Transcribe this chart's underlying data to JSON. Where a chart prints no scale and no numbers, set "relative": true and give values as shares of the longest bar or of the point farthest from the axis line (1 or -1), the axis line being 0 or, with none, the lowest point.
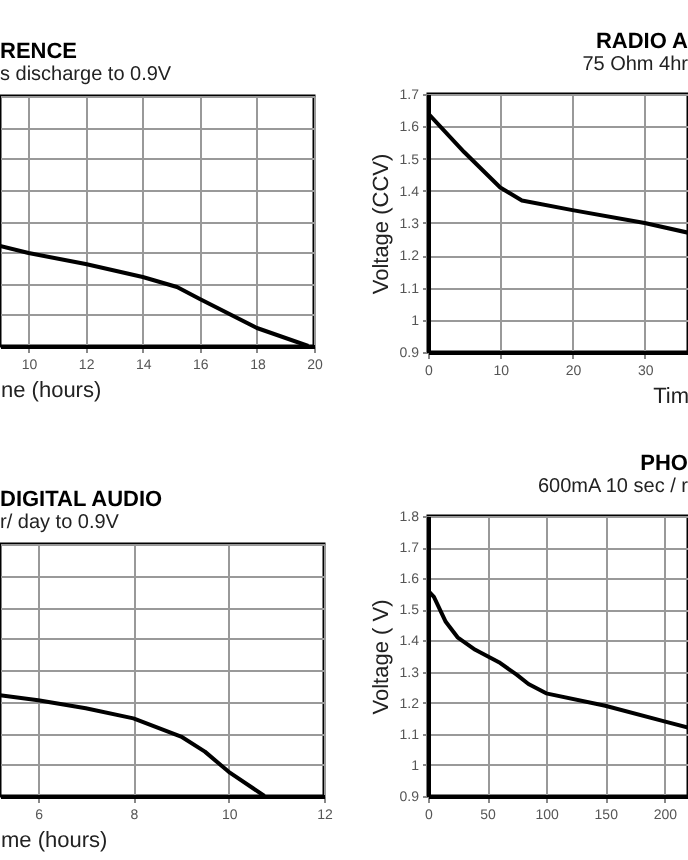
{
  "chart_data": [
    {
      "type": "line",
      "title": "RENCE",
      "subtitle": "s discharge to 0.9V",
      "xlabel": "ne (hours)",
      "relative": true,
      "grid": true,
      "xlim": [
        9,
        20
      ],
      "xticks": [
        10,
        12,
        14,
        16,
        18,
        20
      ],
      "x": [
        9,
        10,
        12,
        14,
        15.2,
        16,
        18,
        19.8
      ],
      "series": [
        {
          "color": "#000000",
          "values": [
            1,
            0.93,
            0.82,
            0.69,
            0.59,
            0.47,
            0.18,
            0
          ]
        }
      ]
    },
    {
      "type": "line",
      "title": "RADIO A",
      "subtitle": "75 Ohm 4hr",
      "xlabel": "Tim",
      "ylabel": "Voltage (CCV)",
      "grid": true,
      "xlim": [
        0,
        36
      ],
      "xticks": [
        0,
        10,
        20,
        30
      ],
      "ylim": [
        0.9,
        1.7
      ],
      "yticks": [
        0.9,
        1,
        1.1,
        1.2,
        1.3,
        1.4,
        1.5,
        1.6,
        1.7
      ],
      "x": [
        0,
        5,
        10,
        13,
        20,
        30,
        36
      ],
      "series": [
        {
          "color": "#000000",
          "values": [
            1.64,
            1.52,
            1.41,
            1.37,
            1.34,
            1.3,
            1.27
          ]
        }
      ]
    },
    {
      "type": "line",
      "title": "DIGITAL AUDIO",
      "subtitle": "r/ day to 0.9V",
      "xlabel": "me (hours)",
      "relative": true,
      "grid": true,
      "xlim": [
        5.2,
        12
      ],
      "xticks": [
        6,
        8,
        10,
        12
      ],
      "x": [
        5.2,
        6,
        7,
        8,
        9,
        9.5,
        10,
        10.75
      ],
      "series": [
        {
          "color": "#000000",
          "values": [
            1,
            0.95,
            0.87,
            0.77,
            0.59,
            0.44,
            0.24,
            0
          ]
        }
      ]
    },
    {
      "type": "line",
      "title": "PHO",
      "subtitle": "600mA 10 sec / r",
      "ylabel": "Voltage ( V)",
      "grid": true,
      "xlim": [
        0,
        220
      ],
      "xticks": [
        0,
        50,
        100,
        150,
        200
      ],
      "ylim": [
        0.9,
        1.8
      ],
      "yticks": [
        0.9,
        1,
        1.1,
        1.2,
        1.3,
        1.4,
        1.5,
        1.6,
        1.7,
        1.8
      ],
      "x": [
        0,
        5,
        15,
        25,
        40,
        60,
        75,
        85,
        100,
        150,
        200,
        220
      ],
      "series": [
        {
          "color": "#000000",
          "values": [
            1.56,
            1.54,
            1.46,
            1.41,
            1.37,
            1.33,
            1.29,
            1.26,
            1.23,
            1.19,
            1.14,
            1.12
          ]
        }
      ]
    }
  ]
}
